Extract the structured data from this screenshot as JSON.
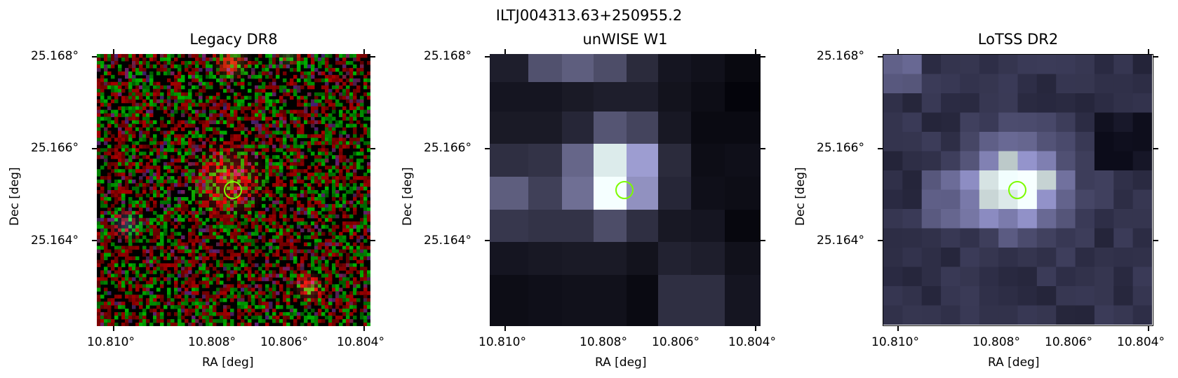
{
  "figure": {
    "title": "ILTJ004313.63+250955.2"
  },
  "panels": [
    {
      "title": "Legacy DR8",
      "xlabel": "RA [deg]",
      "ylabel": "Dec [deg]",
      "xticks": [
        "10.810°",
        "10.808°",
        "10.806°",
        "10.804°"
      ],
      "yticks": [
        "25.168°",
        "25.166°",
        "25.164°"
      ]
    },
    {
      "title": "unWISE W1",
      "xlabel": "RA [deg]",
      "ylabel": "Dec [deg]",
      "xticks": [
        "10.810°",
        "10.808°",
        "10.806°",
        "10.804°"
      ],
      "yticks": [
        "25.168°",
        "25.166°",
        "25.164°"
      ]
    },
    {
      "title": "LoTSS DR2",
      "xlabel": "RA [deg]",
      "ylabel": "Dec [deg]",
      "xticks": [
        "10.810°",
        "10.808°",
        "10.806°",
        "10.804°"
      ],
      "yticks": [
        "25.168°",
        "25.166°",
        "25.164°"
      ]
    }
  ],
  "marker_color": "#7cfc00"
}
